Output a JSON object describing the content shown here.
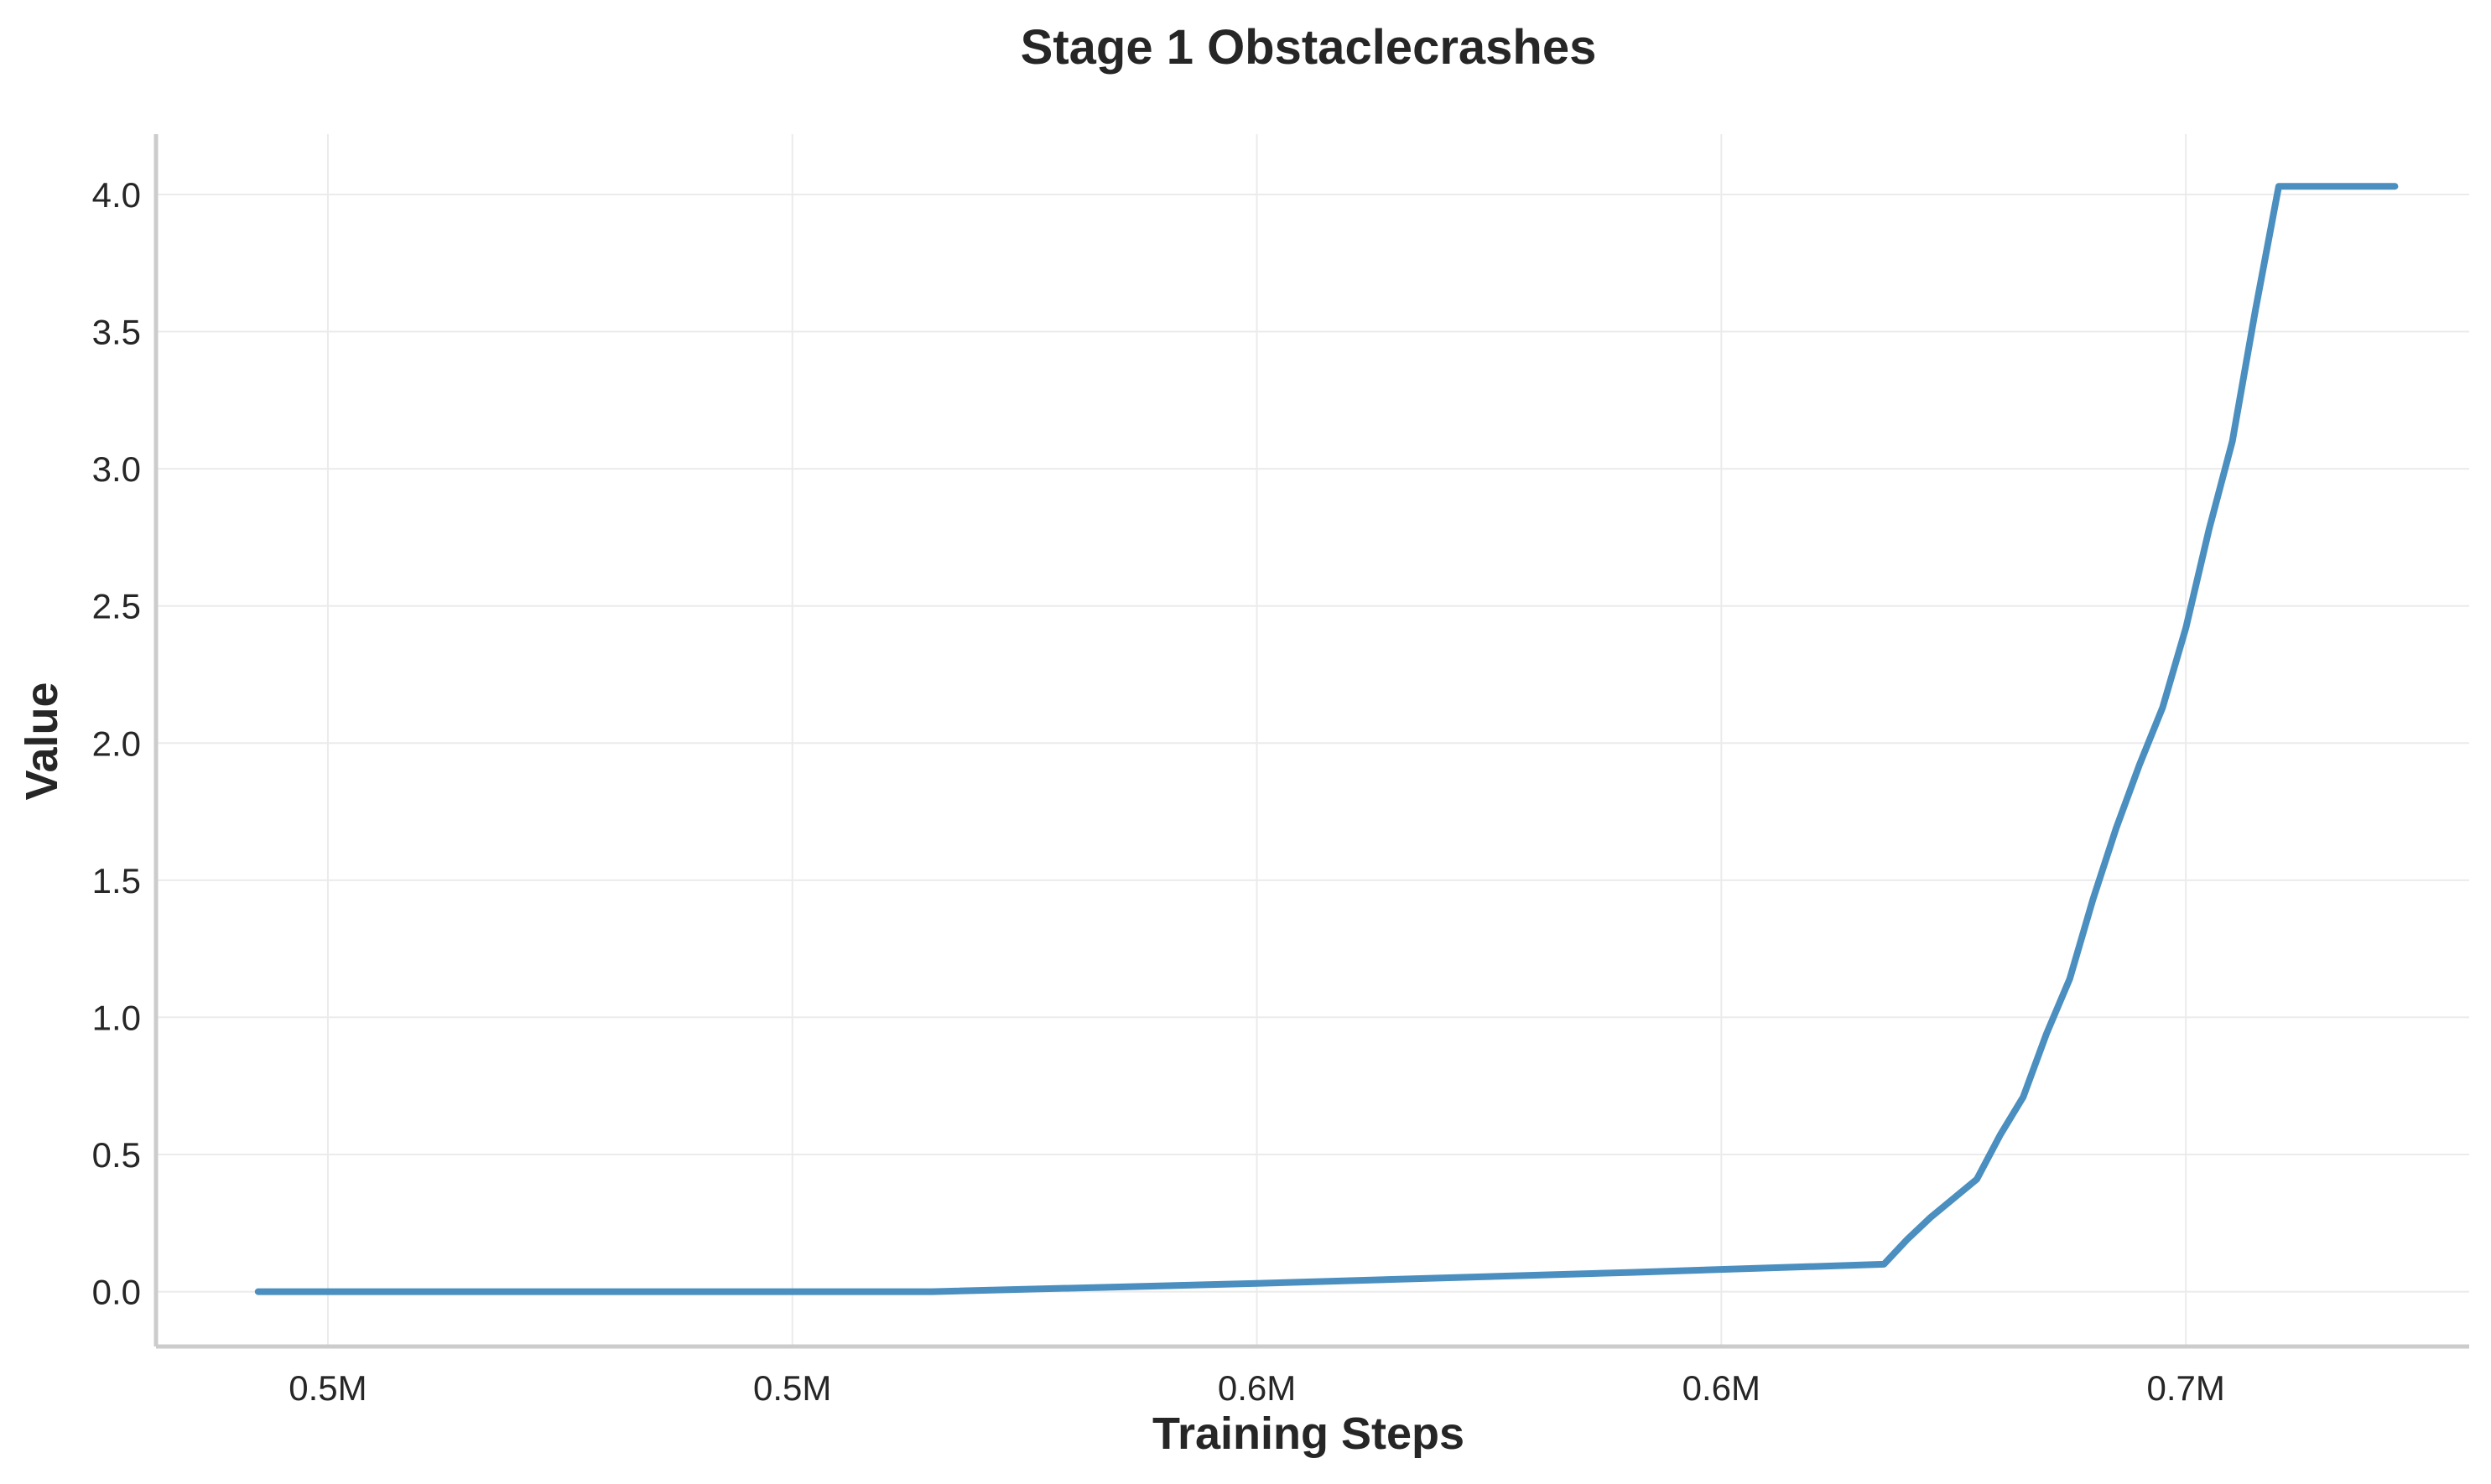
{
  "chart_data": {
    "type": "line",
    "title": "Stage 1 Obstaclecrashes",
    "xlabel": "Training Steps",
    "ylabel": "Value",
    "xlim": [
      0.4815,
      0.7305
    ],
    "ylim": [
      -0.2,
      4.22
    ],
    "grid": true,
    "x_ticks": [
      {
        "value": 0.5,
        "label": "0.5M"
      },
      {
        "value": 0.55,
        "label": "0.5M"
      },
      {
        "value": 0.6,
        "label": "0.6M"
      },
      {
        "value": 0.65,
        "label": "0.6M"
      },
      {
        "value": 0.7,
        "label": "0.7M"
      }
    ],
    "y_ticks": [
      {
        "value": 0.0,
        "label": "0.0"
      },
      {
        "value": 0.5,
        "label": "0.5"
      },
      {
        "value": 1.0,
        "label": "1.0"
      },
      {
        "value": 1.5,
        "label": "1.5"
      },
      {
        "value": 2.0,
        "label": "2.0"
      },
      {
        "value": 2.5,
        "label": "2.5"
      },
      {
        "value": 3.0,
        "label": "3.0"
      },
      {
        "value": 3.5,
        "label": "3.5"
      },
      {
        "value": 4.0,
        "label": "4.0"
      }
    ],
    "series": [
      {
        "color": "#4a8fbf",
        "x": [
          0.4925,
          0.565,
          0.6,
          0.64,
          0.6675,
          0.67,
          0.6725,
          0.675,
          0.6775,
          0.68,
          0.6825,
          0.685,
          0.6875,
          0.69,
          0.6925,
          0.695,
          0.6975,
          0.7,
          0.7025,
          0.705,
          0.7075,
          0.71,
          0.7125,
          0.715,
          0.7175,
          0.72,
          0.7225
        ],
        "y": [
          0.0,
          0.0,
          0.03,
          0.07,
          0.1,
          0.19,
          0.27,
          0.34,
          0.41,
          0.57,
          0.71,
          0.94,
          1.14,
          1.43,
          1.69,
          1.92,
          2.13,
          2.42,
          2.78,
          3.1,
          3.58,
          4.03,
          4.03,
          4.03,
          4.03,
          4.03,
          4.03
        ]
      }
    ]
  }
}
